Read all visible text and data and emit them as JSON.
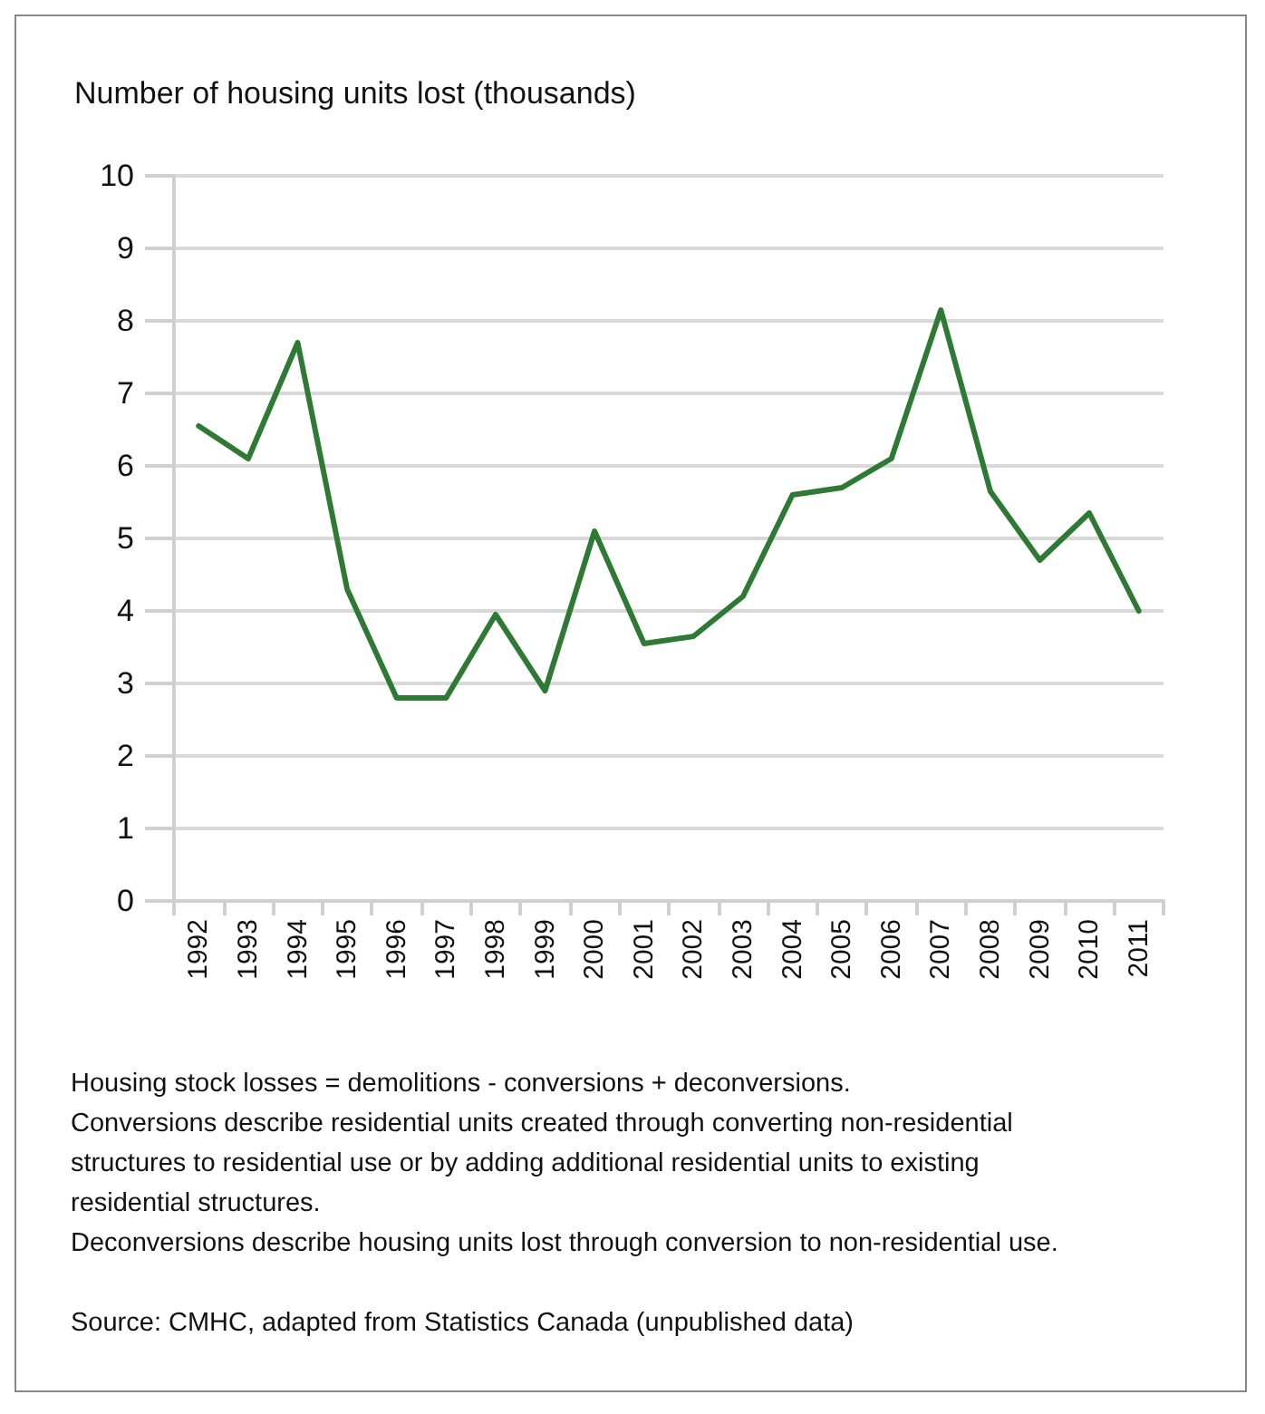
{
  "chart_data": {
    "type": "line",
    "ylabel": "Number of housing units lost (thousands)",
    "categories": [
      "1992",
      "1993",
      "1994",
      "1995",
      "1996",
      "1997",
      "1998",
      "1999",
      "2000",
      "2001",
      "2002",
      "2003",
      "2004",
      "2005",
      "2006",
      "2007",
      "2008",
      "2009",
      "2010",
      "2011"
    ],
    "series": [
      {
        "color": "#2e7a34",
        "values": [
          6.55,
          6.1,
          7.7,
          4.3,
          2.8,
          2.8,
          3.95,
          2.9,
          5.1,
          3.55,
          3.65,
          4.2,
          5.6,
          5.7,
          6.1,
          8.15,
          5.65,
          4.7,
          5.35,
          4.0
        ]
      }
    ],
    "ylim": [
      0,
      10
    ],
    "yticks": [
      0,
      1,
      2,
      3,
      4,
      5,
      6,
      7,
      8,
      9,
      10
    ],
    "grid": "y",
    "marker": "none",
    "line_style": "solid",
    "annotations": [
      "Housing stock losses = demolitions - conversions + deconversions.",
      "Conversions describe residential units created through converting non-residential structures to residential use or by adding additional residential units to existing residential structures.",
      "Deconversions describe housing units lost through conversion to non-residential use.",
      "Source: CMHC, adapted from Statistics Canada (unpublished data)"
    ]
  }
}
